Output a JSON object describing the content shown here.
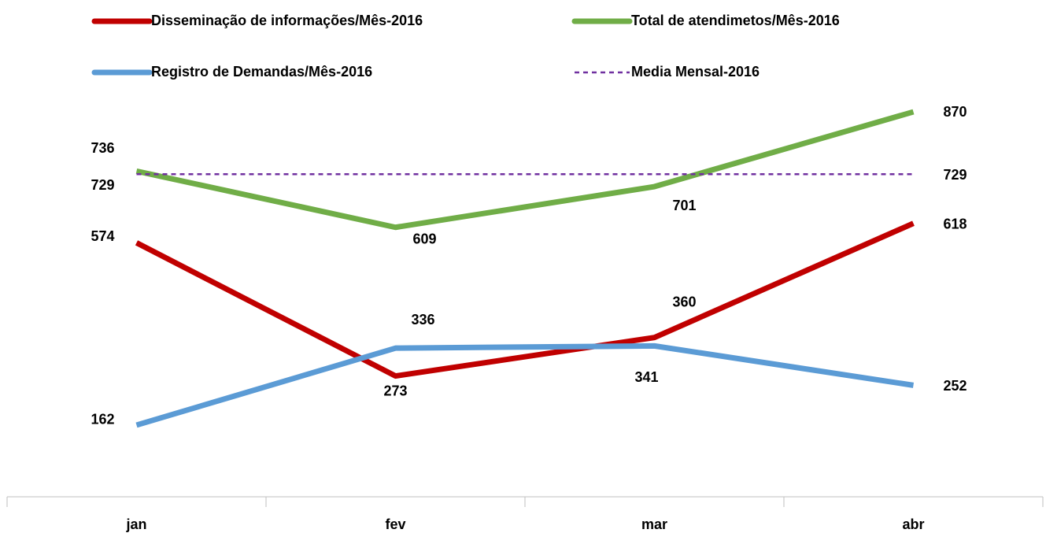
{
  "chart_data": {
    "type": "line",
    "categories": [
      "jan",
      "fev",
      "mar",
      "abr"
    ],
    "series": [
      {
        "name": "Disseminação de informações/Mês-2016",
        "color": "#c00000",
        "values": [
          574,
          273,
          360,
          618
        ]
      },
      {
        "name": "Total de atendimetos/Mês-2016",
        "color": "#70ad47",
        "values": [
          736,
          609,
          701,
          870
        ]
      },
      {
        "name": "Registro de Demandas/Mês-2016",
        "color": "#5b9bd5",
        "values": [
          162,
          336,
          341,
          252
        ]
      },
      {
        "name": "Media Mensal-2016",
        "color": "#7030a0",
        "dashed": true,
        "values": [
          729,
          729,
          729,
          729
        ],
        "value_labels": [
          "729",
          null,
          null,
          "729"
        ]
      }
    ],
    "ylim": [
      0,
      1000
    ]
  }
}
